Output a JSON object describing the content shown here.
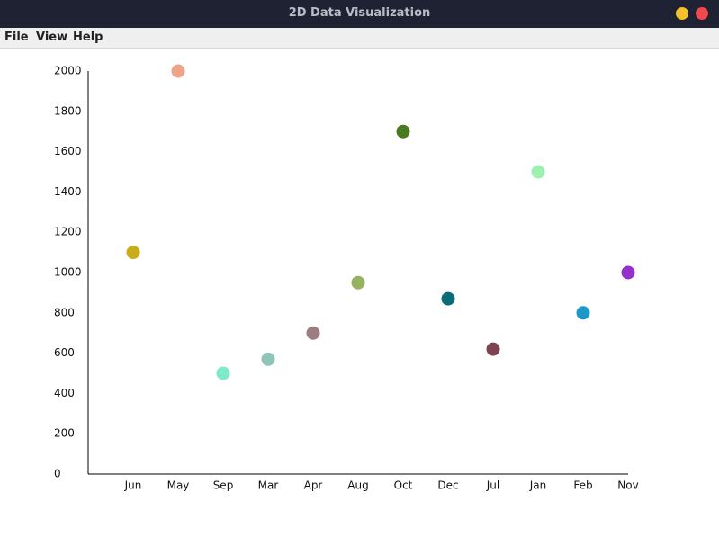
{
  "window": {
    "title": "2D Data Visualization",
    "menu": [
      "File",
      "View",
      "Help"
    ]
  },
  "chart_data": {
    "type": "scatter",
    "categories": [
      "Jun",
      "May",
      "Sep",
      "Mar",
      "Apr",
      "Aug",
      "Oct",
      "Dec",
      "Jul",
      "Jan",
      "Feb",
      "Nov"
    ],
    "values": [
      1100,
      2000,
      500,
      570,
      700,
      950,
      1700,
      870,
      620,
      1500,
      800,
      1000
    ],
    "colors": [
      "#c8ad1a",
      "#eda58a",
      "#7eeacb",
      "#8fc4b8",
      "#9c7e80",
      "#93b35e",
      "#487a22",
      "#086d77",
      "#7d4450",
      "#9ef0b0",
      "#1d98c8",
      "#9530cc"
    ],
    "ylim": [
      0,
      2000
    ],
    "yticks": [
      0,
      200,
      400,
      600,
      800,
      1000,
      1200,
      1400,
      1600,
      1800,
      2000
    ],
    "grid": false
  }
}
